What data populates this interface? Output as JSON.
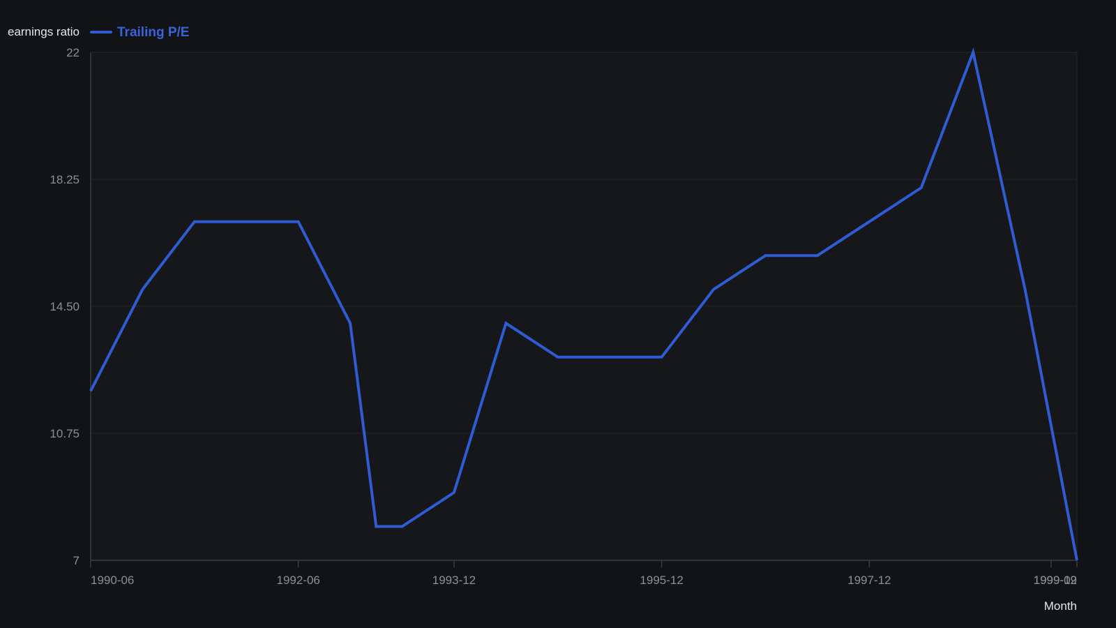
{
  "chart_data": {
    "type": "line",
    "title": "",
    "xlabel": "Month",
    "ylabel": "earnings ratio",
    "ylim": [
      7,
      22
    ],
    "yticks": [
      "7",
      "10.75",
      "14.50",
      "18.25",
      "22"
    ],
    "xticks": [
      {
        "date": "1990-06",
        "label": "1990-06"
      },
      {
        "date": "1992-06",
        "label": "1992-06"
      },
      {
        "date": "1993-12",
        "label": "1993-12"
      },
      {
        "date": "1995-12",
        "label": "1995-12"
      },
      {
        "date": "1997-12",
        "label": "1997-12"
      },
      {
        "date": "1999-09",
        "label": "1999-09"
      },
      {
        "date": "1999-12",
        "label": "1999-12"
      }
    ],
    "grid": true,
    "legend": "top-left",
    "series": [
      {
        "name": "Trailing P/E",
        "color": "#2f5bd3",
        "points": [
          {
            "x": "1990-06",
            "y": 12
          },
          {
            "x": "1990-12",
            "y": 15
          },
          {
            "x": "1991-06",
            "y": 17
          },
          {
            "x": "1991-12",
            "y": 17
          },
          {
            "x": "1992-06",
            "y": 17
          },
          {
            "x": "1992-12",
            "y": 14
          },
          {
            "x": "1993-03",
            "y": 8
          },
          {
            "x": "1993-06",
            "y": 8
          },
          {
            "x": "1993-12",
            "y": 9
          },
          {
            "x": "1994-06",
            "y": 14
          },
          {
            "x": "1994-12",
            "y": 13
          },
          {
            "x": "1995-06",
            "y": 13
          },
          {
            "x": "1995-12",
            "y": 13
          },
          {
            "x": "1996-06",
            "y": 15
          },
          {
            "x": "1996-12",
            "y": 16
          },
          {
            "x": "1997-06",
            "y": 16
          },
          {
            "x": "1997-12",
            "y": 17
          },
          {
            "x": "1998-06",
            "y": 18
          },
          {
            "x": "1998-12",
            "y": 22
          },
          {
            "x": "1999-06",
            "y": 15
          },
          {
            "x": "1999-12",
            "y": 7
          }
        ]
      }
    ],
    "colors": {
      "background": "#111317",
      "plot_background": "#15171b",
      "grid": "#23262c",
      "axis": "#3a3d44",
      "tick_text": "#8b8f98",
      "title_text": "#e6e8eb"
    }
  }
}
